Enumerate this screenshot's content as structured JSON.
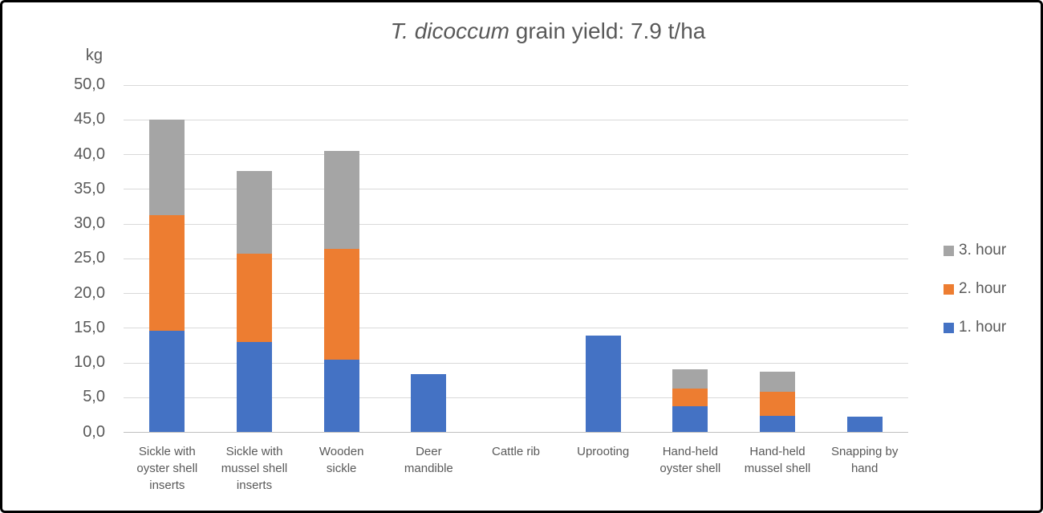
{
  "title": {
    "italic_part": "T. dicoccum",
    "normal_part": " grain yield: 7.9 t/ha"
  },
  "y_axis": {
    "unit_label": "kg",
    "tick_labels": [
      "0,0",
      "5,0",
      "10,0",
      "15,0",
      "20,0",
      "25,0",
      "30,0",
      "35,0",
      "40,0",
      "45,0",
      "50,0"
    ],
    "min": 0,
    "max": 50,
    "step": 5
  },
  "legend": {
    "position": "right",
    "items": [
      {
        "label": "3. hour",
        "color": "#a5a5a5"
      },
      {
        "label": "2. hour",
        "color": "#ed7d31"
      },
      {
        "label": "1. hour",
        "color": "#4472c4"
      }
    ]
  },
  "chart_data": {
    "type": "bar",
    "stacked": true,
    "title": "T. dicoccum grain yield: 7.9 t/ha",
    "ylabel": "kg",
    "ylim": [
      0,
      50
    ],
    "ytick_step": 5,
    "grid": true,
    "legend_position": "right",
    "categories": [
      "Sickle with oyster shell inserts",
      "Sickle with mussel shell inserts",
      "Wooden sickle",
      "Deer mandible",
      "Cattle rib",
      "Uprooting",
      "Hand-held oyster shell",
      "Hand-held mussel shell",
      "Snapping by hand"
    ],
    "series": [
      {
        "name": "1. hour",
        "color": "#4472c4",
        "values": [
          14.6,
          13.0,
          10.5,
          8.4,
          0,
          13.9,
          3.7,
          2.4,
          2.3
        ]
      },
      {
        "name": "2. hour",
        "color": "#ed7d31",
        "values": [
          16.7,
          12.7,
          15.9,
          0,
          0,
          0,
          2.6,
          3.4,
          0
        ]
      },
      {
        "name": "3. hour",
        "color": "#a5a5a5",
        "values": [
          13.7,
          11.9,
          14.1,
          0,
          0,
          0,
          2.8,
          2.9,
          0
        ]
      }
    ],
    "stack_totals": [
      45.0,
      37.6,
      40.5,
      8.4,
      0,
      13.9,
      9.1,
      8.7,
      2.3
    ]
  }
}
